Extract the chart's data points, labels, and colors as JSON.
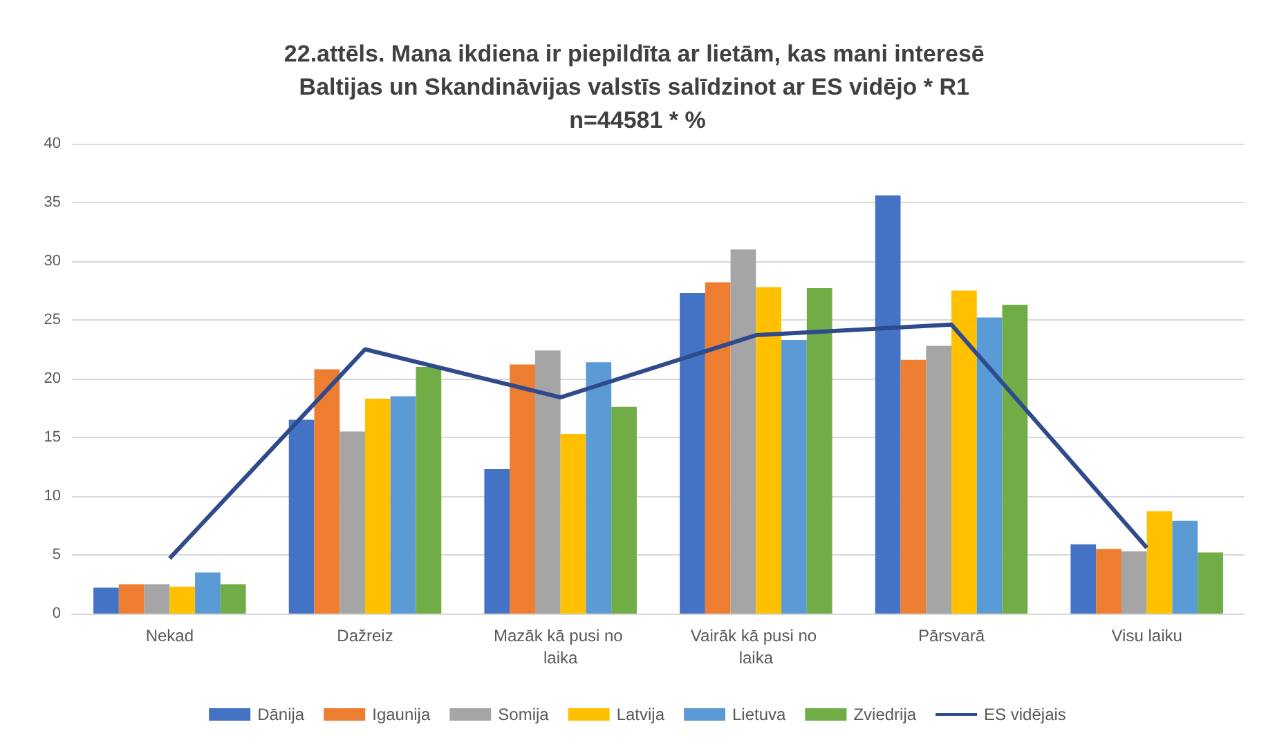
{
  "chart_data": {
    "type": "bar",
    "title": "22.attēls. Mana ikdiena ir piepildīta ar lietām, kas mani interesē Baltijas un Skandināvijas valstīs salīdzinot ar ES vidējo * R1 n=44581 * %",
    "categories": [
      "Nekad",
      "Dažreiz",
      "Mazāk kā pusi no laika",
      "Vairāk kā pusi no laika",
      "Pārsvarā",
      "Visu laiku"
    ],
    "series": [
      {
        "name": "Dānija",
        "color": "#4472c4",
        "values": [
          2.2,
          16.5,
          12.3,
          27.3,
          35.6,
          5.9
        ]
      },
      {
        "name": "Igaunija",
        "color": "#ed7d31",
        "values": [
          2.5,
          20.8,
          21.2,
          28.2,
          21.6,
          5.5
        ]
      },
      {
        "name": "Somija",
        "color": "#a5a5a5",
        "values": [
          2.5,
          15.5,
          22.4,
          31.0,
          22.8,
          5.3
        ]
      },
      {
        "name": "Latvija",
        "color": "#ffc000",
        "values": [
          2.3,
          18.3,
          15.3,
          27.8,
          27.5,
          8.7
        ]
      },
      {
        "name": "Lietuva",
        "color": "#5b9bd5",
        "values": [
          3.5,
          18.5,
          21.4,
          23.3,
          25.2,
          7.9
        ]
      },
      {
        "name": "Zviedrija",
        "color": "#70ad47",
        "values": [
          2.5,
          21.0,
          17.6,
          27.7,
          26.3,
          5.2
        ]
      },
      {
        "name": "ES vidējais",
        "type": "line",
        "color": "#2f4b8c",
        "values": [
          4.7,
          22.5,
          18.4,
          23.7,
          24.6,
          5.6
        ]
      }
    ],
    "ylim": [
      0,
      40
    ],
    "yticks": [
      0,
      5,
      10,
      15,
      20,
      25,
      30,
      35,
      40
    ],
    "grid": "y",
    "legend": "bottom",
    "marker": "none"
  }
}
